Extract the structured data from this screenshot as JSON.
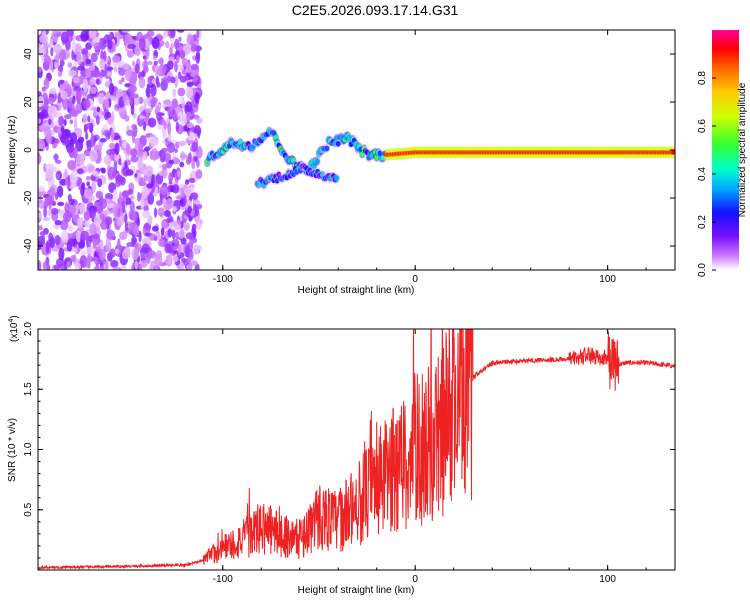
{
  "title": "C2E5.2026.093.17.14.G31",
  "chart_data": [
    {
      "type": "heatmap",
      "title": "C2E5.2026.093.17.14.G31",
      "xlabel": "Height of straight line (km)",
      "ylabel": "Frequency (Hz)",
      "xlim": [
        -196,
        135
      ],
      "ylim": [
        -50,
        50
      ],
      "x_ticks": [
        -100,
        0,
        100
      ],
      "y_ticks": [
        -40,
        -20,
        0,
        20,
        40
      ],
      "colorbar": {
        "label": "Normalized spectral amplitude",
        "range": [
          0,
          1
        ],
        "ticks": [
          0.0,
          0.2,
          0.4,
          0.6,
          0.8
        ],
        "colormap": [
          "#ffffff",
          "#cc77ff",
          "#7711ff",
          "#1111ff",
          "#00aaff",
          "#00ffcc",
          "#33ff33",
          "#ccff00",
          "#ffcc00",
          "#ff6600",
          "#ff0000",
          "#ff0099"
        ]
      },
      "features": [
        {
          "name": "broadband-noise",
          "x_range": [
            -196,
            -112
          ],
          "y_range": [
            -50,
            50
          ],
          "amplitude": 0.15
        },
        {
          "name": "tone-track",
          "points": [
            [
              -108,
              -4
            ],
            [
              -95,
              3
            ],
            [
              -85,
              2
            ],
            [
              -75,
              8
            ],
            [
              -65,
              -5
            ],
            [
              -55,
              -8
            ],
            [
              -45,
              3
            ],
            [
              -35,
              5
            ],
            [
              -25,
              -2
            ],
            [
              -15,
              -2
            ],
            [
              0,
              -1
            ],
            [
              20,
              -1
            ],
            [
              60,
              -1
            ],
            [
              100,
              -1
            ],
            [
              135,
              -1
            ]
          ],
          "amplitude_start": 0.35,
          "amplitude_end": 0.9
        },
        {
          "name": "secondary-track",
          "points": [
            [
              -82,
              -14
            ],
            [
              -70,
              -11
            ],
            [
              -58,
              -8
            ],
            [
              -45,
              -11
            ],
            [
              -40,
              -12
            ]
          ],
          "amplitude": 0.3
        }
      ]
    },
    {
      "type": "line",
      "title": "",
      "xlabel": "Height of straight line (km)",
      "ylabel": "SNR (10 * v/v)",
      "y_scale_label": "(x10",
      "y_scale_exp": "4",
      "xlim": [
        -196,
        135
      ],
      "ylim": [
        0,
        2.0
      ],
      "x_ticks": [
        -100,
        0,
        100
      ],
      "y_ticks": [
        0.5,
        1.0,
        1.5,
        2.0
      ],
      "y_tick_labels": [
        "0.5",
        "1.0",
        "1.5",
        "2.0"
      ],
      "color": "#ee2222",
      "series": [
        {
          "name": "SNR envelope",
          "x": [
            -196,
            -150,
            -120,
            -110,
            -100,
            -90,
            -80,
            -70,
            -60,
            -50,
            -40,
            -30,
            -20,
            -10,
            0,
            10,
            20,
            30,
            40,
            60,
            80,
            90,
            100,
            104,
            110,
            120,
            135
          ],
          "values": [
            0.02,
            0.03,
            0.04,
            0.08,
            0.18,
            0.25,
            0.35,
            0.3,
            0.25,
            0.45,
            0.4,
            0.55,
            0.7,
            0.85,
            1.0,
            1.05,
            1.35,
            1.6,
            1.72,
            1.74,
            1.75,
            1.78,
            1.76,
            1.7,
            1.72,
            1.72,
            1.69
          ]
        }
      ]
    }
  ]
}
